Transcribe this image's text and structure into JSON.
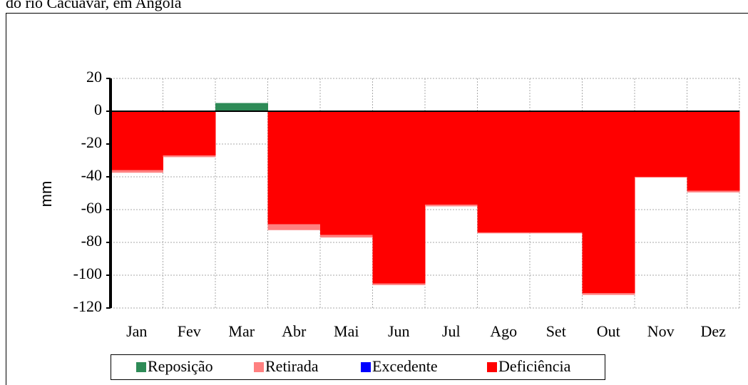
{
  "chart_data": {
    "type": "stacked_step_area",
    "title": "do rio Cacuavar, em Angola",
    "y_label": "mm",
    "categories": [
      "Jan",
      "Fev",
      "Mar",
      "Abr",
      "Mai",
      "Jun",
      "Jul",
      "Ago",
      "Set",
      "Out",
      "Nov",
      "Dez"
    ],
    "series": [
      {
        "name": "Reposição",
        "color": "#2e8b57",
        "values": [
          0,
          0,
          5,
          0,
          0,
          0,
          0,
          0,
          0,
          0,
          0,
          0
        ]
      },
      {
        "name": "Retirada",
        "color": "#ff8080",
        "values": [
          -1.5,
          -1,
          0,
          -3.5,
          -1.5,
          -1,
          -1,
          -0.5,
          -0.5,
          -1,
          -0.5,
          -1
        ]
      },
      {
        "name": "Excedente",
        "color": "#0000ff",
        "values": [
          0,
          0,
          0,
          0,
          0,
          0,
          0,
          0,
          0,
          0,
          0,
          0
        ]
      },
      {
        "name": "Deficiência",
        "color": "#ff0000",
        "values": [
          -36,
          -27,
          0,
          -69,
          -75.5,
          -105,
          -57,
          -74,
          -74,
          -111,
          -40,
          -48.5
        ]
      }
    ],
    "ylim": [
      -120,
      20
    ],
    "yticks": [
      20,
      0,
      -20,
      -40,
      -60,
      -80,
      -100,
      -120
    ],
    "grid": true
  }
}
